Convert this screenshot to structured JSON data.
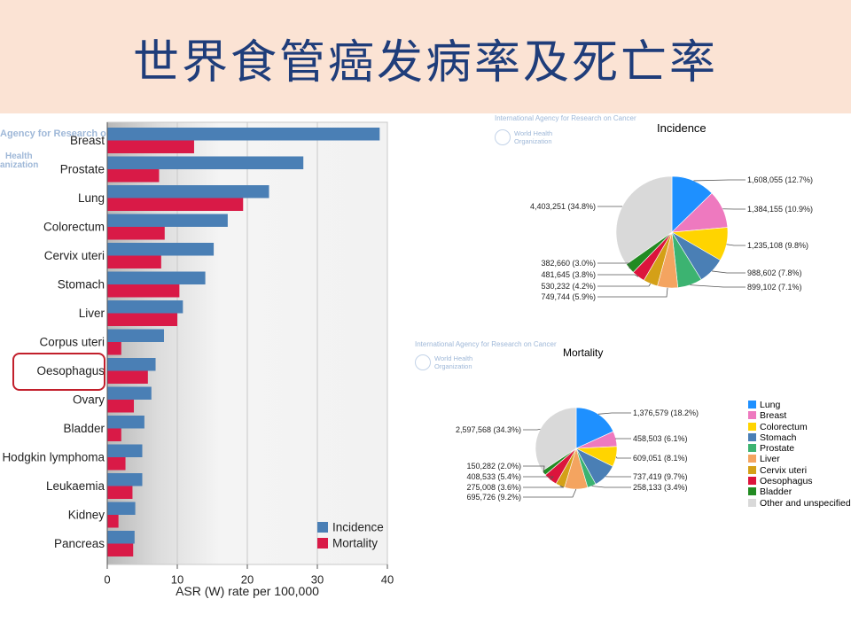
{
  "slide": {
    "title": "世界食管癌发病率及死亡率"
  },
  "watermarks": {
    "bar_agency": "Agency for Research on",
    "bar_who_1": "Health",
    "bar_who_2": "anization",
    "pie1_agency": "International Agency for Research on Cancer",
    "pie1_who_1": "World Health",
    "pie1_who_2": "Organization",
    "pie2_agency": "International Agency for Research on Cancer",
    "pie2_who_1": "World Health",
    "pie2_who_2": "Organization"
  },
  "chart_data": [
    {
      "type": "bar",
      "orientation": "horizontal",
      "categories": [
        "Breast",
        "Prostate",
        "Lung",
        "Colorectum",
        "Cervix uteri",
        "Stomach",
        "Liver",
        "Corpus uteri",
        "Oesophagus",
        "Ovary",
        "Bladder",
        "Hodgkin lymphoma",
        "Leukaemia",
        "Kidney",
        "Pancreas"
      ],
      "series": [
        {
          "name": "Incidence",
          "color": "#4a7fb5",
          "values": [
            38.9,
            28.0,
            23.1,
            17.2,
            15.2,
            14.0,
            10.8,
            8.1,
            6.9,
            6.3,
            5.3,
            5.0,
            5.0,
            4.0,
            3.9
          ]
        },
        {
          "name": "Mortality",
          "color": "#d91a47",
          "values": [
            12.4,
            7.4,
            19.4,
            8.2,
            7.7,
            10.3,
            10.0,
            2.0,
            5.8,
            3.8,
            2.0,
            2.6,
            3.6,
            1.6,
            3.7
          ]
        }
      ],
      "xlabel": "ASR (W) rate per 100,000",
      "xlim": [
        0,
        40
      ],
      "xticks": [
        "0",
        "10",
        "20",
        "30",
        "40"
      ],
      "legend_position": "bottom-right",
      "highlight": "Oesophagus"
    },
    {
      "type": "pie",
      "title": "Incidence",
      "slices": [
        {
          "name": "Lung",
          "value": 1608055,
          "label": "1,608,055 (12.7%)",
          "color": "#1e90ff"
        },
        {
          "name": "Breast",
          "value": 1384155,
          "label": "1,384,155 (10.9%)",
          "color": "#ee79bf"
        },
        {
          "name": "Colorectum",
          "value": 1235108,
          "label": "1,235,108 (9.8%)",
          "color": "#ffd400"
        },
        {
          "name": "Stomach",
          "value": 988602,
          "label": "988,602 (7.8%)",
          "color": "#4a7fb5"
        },
        {
          "name": "Prostate",
          "value": 899102,
          "label": "899,102 (7.1%)",
          "color": "#3cb371"
        },
        {
          "name": "Liver",
          "value": 749744,
          "label": "749,744 (5.9%)",
          "color": "#f4a460"
        },
        {
          "name": "Cervix uteri",
          "value": 530232,
          "label": "530,232 (4.2%)",
          "color": "#d4a017"
        },
        {
          "name": "Oesophagus",
          "value": 481645,
          "label": "481,645 (3.8%)",
          "color": "#dc143c"
        },
        {
          "name": "Bladder",
          "value": 382660,
          "label": "382,660 (3.0%)",
          "color": "#228b22"
        },
        {
          "name": "Other and unspecified",
          "value": 4403251,
          "label": "4,403,251 (34.8%)",
          "color": "#d9d9d9"
        }
      ]
    },
    {
      "type": "pie",
      "title": "Mortality",
      "slices": [
        {
          "name": "Lung",
          "value": 1376579,
          "label": "1,376,579 (18.2%)",
          "color": "#1e90ff"
        },
        {
          "name": "Breast",
          "value": 458503,
          "label": "458,503 (6.1%)",
          "color": "#ee79bf"
        },
        {
          "name": "Colorectum",
          "value": 609051,
          "label": "609,051 (8.1%)",
          "color": "#ffd400"
        },
        {
          "name": "Stomach",
          "value": 737419,
          "label": "737,419 (9.7%)",
          "color": "#4a7fb5"
        },
        {
          "name": "Prostate",
          "value": 258133,
          "label": "258,133 (3.4%)",
          "color": "#3cb371"
        },
        {
          "name": "Liver",
          "value": 695726,
          "label": "695,726 (9.2%)",
          "color": "#f4a460"
        },
        {
          "name": "Cervix uteri",
          "value": 275008,
          "label": "275,008 (3.6%)",
          "color": "#d4a017"
        },
        {
          "name": "Oesophagus",
          "value": 408533,
          "label": "408,533 (5.4%)",
          "color": "#dc143c"
        },
        {
          "name": "Bladder",
          "value": 150282,
          "label": "150,282 (2.0%)",
          "color": "#228b22"
        },
        {
          "name": "Other and unspecified",
          "value": 2597568,
          "label": "2,597,568 (34.3%)",
          "color": "#d9d9d9"
        }
      ],
      "legend": [
        "Lung",
        "Breast",
        "Colorectum",
        "Stomach",
        "Prostate",
        "Liver",
        "Cervix uteri",
        "Oesophagus",
        "Bladder",
        "Other and unspecified"
      ]
    }
  ]
}
